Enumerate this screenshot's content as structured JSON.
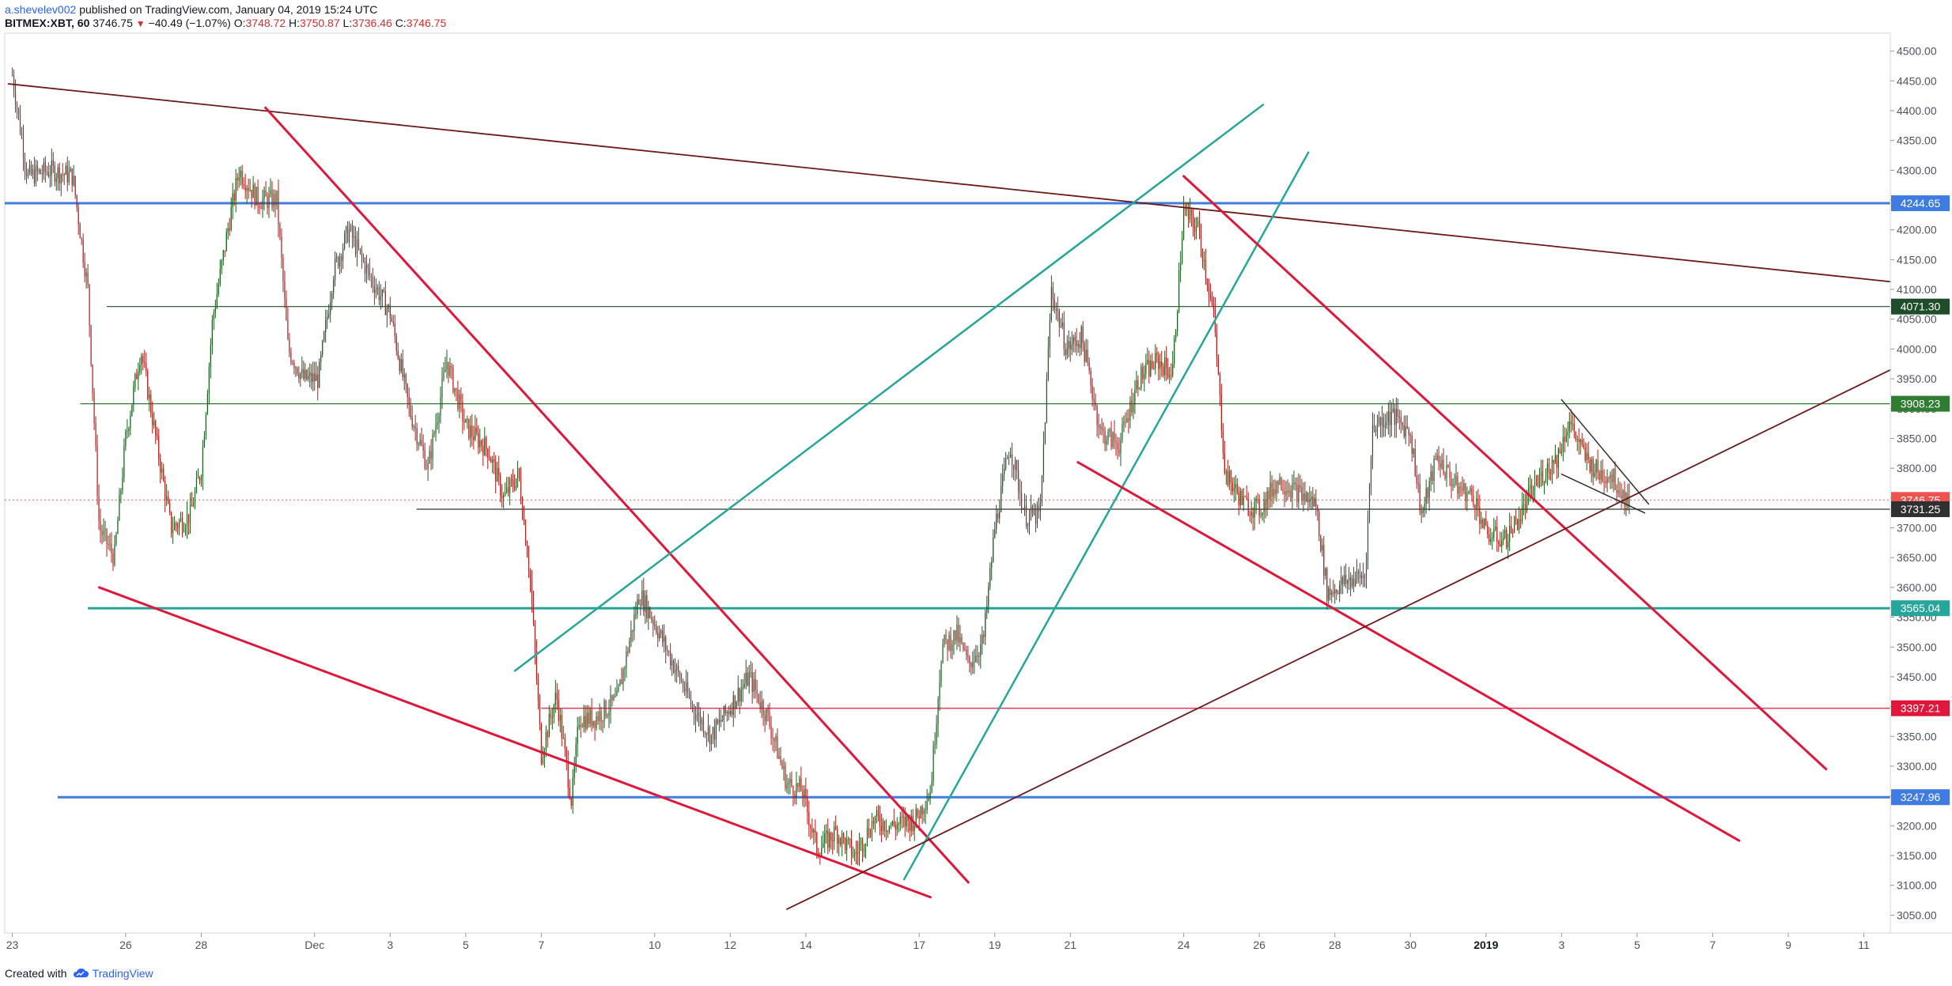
{
  "header": {
    "author": "a.shevelev002",
    "published": "published on TradingView.com, January 04, 2019 15:24 UTC",
    "symbol": "BITMEX:XBT, 60",
    "last": "3746.75",
    "change_arrow": "▼",
    "change": "−40.49 (−1.07%)",
    "o_label": "O:",
    "o_value": "3748.72",
    "h_label": "H:",
    "h_value": "3750.87",
    "l_label": "L:",
    "l_value": "3736.46",
    "c_label": "C:",
    "c_value": "3746.75"
  },
  "footer": {
    "created_with": "Created with",
    "brand": "TradingView"
  },
  "colors": {
    "up": "#1b5e20",
    "down": "#b71c1c",
    "trend_red": "#e0173b",
    "trend_teal": "#26a69a",
    "trend_maroon": "#6d1a1a",
    "level_blue": "#3f7be0",
    "level_green": "#1f6b30"
  },
  "chart_data": {
    "type": "candlestick",
    "symbol": "BITMEX:XBT",
    "interval": "60",
    "xlabel": "",
    "ylabel": "",
    "y_range": [
      3020,
      4530
    ],
    "y_ticks": [
      3050,
      3100,
      3150,
      3200,
      3250,
      3300,
      3350,
      3400,
      3450,
      3500,
      3550,
      3600,
      3650,
      3700,
      3750,
      3800,
      3850,
      3900,
      3950,
      4000,
      4050,
      4100,
      4150,
      4200,
      4250,
      4300,
      4350,
      4400,
      4450,
      4500
    ],
    "y_tick_labels": [
      "3050.00",
      "3100.00",
      "3150.00",
      "3200.00",
      "3250.00",
      "3300.00",
      "3350.00",
      "3400.00",
      "3450.00",
      "3500.00",
      "3550.00",
      "3600.00",
      "3650.00",
      "3700.00",
      "3750.00",
      "3800.00",
      "3850.00",
      "3900.00",
      "3950.00",
      "4000.00",
      "4050.00",
      "4100.00",
      "4150.00",
      "4200.00",
      "4250.00",
      "4300.00",
      "4350.00",
      "4400.00",
      "4450.00",
      "4500.00"
    ],
    "x_range_days": [
      -0.2,
      49.7
    ],
    "x_ticks": [
      {
        "day": 0,
        "label": "23"
      },
      {
        "day": 3,
        "label": "26"
      },
      {
        "day": 5,
        "label": "28"
      },
      {
        "day": 8,
        "label": "Dec"
      },
      {
        "day": 10,
        "label": "3"
      },
      {
        "day": 12,
        "label": "5"
      },
      {
        "day": 14,
        "label": "7"
      },
      {
        "day": 17,
        "label": "10"
      },
      {
        "day": 19,
        "label": "12"
      },
      {
        "day": 21,
        "label": "14"
      },
      {
        "day": 24,
        "label": "17"
      },
      {
        "day": 26,
        "label": "19"
      },
      {
        "day": 28,
        "label": "21"
      },
      {
        "day": 31,
        "label": "24"
      },
      {
        "day": 33,
        "label": "26"
      },
      {
        "day": 35,
        "label": "28"
      },
      {
        "day": 37,
        "label": "30"
      },
      {
        "day": 39,
        "label": "2019",
        "bold": true
      },
      {
        "day": 41,
        "label": "3"
      },
      {
        "day": 43,
        "label": "5"
      },
      {
        "day": 45,
        "label": "7"
      },
      {
        "day": 47,
        "label": "9"
      },
      {
        "day": 49,
        "label": "11"
      }
    ],
    "close_path": [
      [
        0,
        4460
      ],
      [
        0.4,
        4290
      ],
      [
        1.0,
        4300
      ],
      [
        1.6,
        4290
      ],
      [
        2.0,
        4100
      ],
      [
        2.3,
        3700
      ],
      [
        2.7,
        3650
      ],
      [
        3.0,
        3850
      ],
      [
        3.4,
        4000
      ],
      [
        3.8,
        3850
      ],
      [
        4.2,
        3700
      ],
      [
        4.7,
        3720
      ],
      [
        5.0,
        3800
      ],
      [
        5.3,
        4050
      ],
      [
        5.7,
        4200
      ],
      [
        6.0,
        4300
      ],
      [
        6.5,
        4250
      ],
      [
        7.0,
        4250
      ],
      [
        7.3,
        4000
      ],
      [
        7.7,
        3950
      ],
      [
        8.1,
        3950
      ],
      [
        8.5,
        4130
      ],
      [
        8.9,
        4200
      ],
      [
        9.4,
        4130
      ],
      [
        10.0,
        4060
      ],
      [
        10.5,
        3900
      ],
      [
        11.0,
        3800
      ],
      [
        11.5,
        3980
      ],
      [
        12.0,
        3870
      ],
      [
        12.6,
        3830
      ],
      [
        13.0,
        3750
      ],
      [
        13.4,
        3790
      ],
      [
        13.7,
        3620
      ],
      [
        14.0,
        3320
      ],
      [
        14.4,
        3420
      ],
      [
        14.8,
        3240
      ],
      [
        15.0,
        3380
      ],
      [
        15.4,
        3380
      ],
      [
        16.0,
        3410
      ],
      [
        16.6,
        3590
      ],
      [
        17.0,
        3540
      ],
      [
        17.5,
        3470
      ],
      [
        18.0,
        3400
      ],
      [
        18.5,
        3350
      ],
      [
        19.0,
        3400
      ],
      [
        19.5,
        3450
      ],
      [
        20.0,
        3380
      ],
      [
        20.5,
        3270
      ],
      [
        20.9,
        3260
      ],
      [
        21.3,
        3160
      ],
      [
        21.8,
        3190
      ],
      [
        22.3,
        3150
      ],
      [
        22.8,
        3210
      ],
      [
        23.3,
        3200
      ],
      [
        23.9,
        3210
      ],
      [
        24.3,
        3260
      ],
      [
        24.6,
        3500
      ],
      [
        25.0,
        3520
      ],
      [
        25.3,
        3470
      ],
      [
        25.7,
        3510
      ],
      [
        26.0,
        3700
      ],
      [
        26.4,
        3840
      ],
      [
        26.8,
        3720
      ],
      [
        27.2,
        3720
      ],
      [
        27.5,
        4100
      ],
      [
        27.9,
        4000
      ],
      [
        28.3,
        4020
      ],
      [
        28.8,
        3860
      ],
      [
        29.3,
        3840
      ],
      [
        29.8,
        3950
      ],
      [
        30.3,
        3980
      ],
      [
        30.7,
        3960
      ],
      [
        31.0,
        4230
      ],
      [
        31.4,
        4200
      ],
      [
        31.8,
        4050
      ],
      [
        32.1,
        3790
      ],
      [
        32.6,
        3740
      ],
      [
        33.0,
        3730
      ],
      [
        33.5,
        3780
      ],
      [
        34.0,
        3760
      ],
      [
        34.5,
        3740
      ],
      [
        34.8,
        3590
      ],
      [
        35.3,
        3610
      ],
      [
        35.8,
        3620
      ],
      [
        36.0,
        3870
      ],
      [
        36.5,
        3890
      ],
      [
        37.0,
        3860
      ],
      [
        37.3,
        3720
      ],
      [
        37.7,
        3820
      ],
      [
        38.2,
        3770
      ],
      [
        38.7,
        3750
      ],
      [
        39.0,
        3690
      ],
      [
        39.5,
        3680
      ],
      [
        39.9,
        3720
      ],
      [
        40.2,
        3760
      ],
      [
        40.5,
        3790
      ],
      [
        40.9,
        3820
      ],
      [
        41.2,
        3880
      ],
      [
        41.6,
        3820
      ],
      [
        42.0,
        3790
      ],
      [
        42.3,
        3790
      ],
      [
        42.6,
        3760
      ],
      [
        42.8,
        3740
      ]
    ],
    "horizontal_levels": [
      {
        "price": 4244.65,
        "label": "4244.65",
        "color": "#3f7be0",
        "width": 3,
        "x_from_day": -0.2
      },
      {
        "price": 4071.3,
        "label": "4071.30",
        "color": "#1f4d2a",
        "width": 1.2,
        "x_from_day": 2.5
      },
      {
        "price": 3908.23,
        "label": "3908.23",
        "color": "#2e7d32",
        "width": 1.2,
        "x_from_day": 1.8
      },
      {
        "price": 3731.25,
        "label": "3731.25",
        "color": "#303030",
        "width": 1.2,
        "x_from_day": 10.7
      },
      {
        "price": 3565.04,
        "label": "3565.04",
        "color": "#26a69a",
        "width": 3,
        "x_from_day": 2.0
      },
      {
        "price": 3397.21,
        "label": "3397.21",
        "color": "#e0173b",
        "width": 1.2,
        "x_from_day": 14.0
      },
      {
        "price": 3247.96,
        "label": "3247.96",
        "color": "#3f7be0",
        "width": 3,
        "x_from_day": 1.2
      }
    ],
    "last_price": {
      "price": 3746.75,
      "label": "3746.75"
    },
    "trendlines": [
      {
        "color": "#6d1a1a",
        "width": 1.8,
        "from": [
          -0.1,
          4445
        ],
        "to": [
          49.7,
          4113
        ]
      },
      {
        "color": "#e0173b",
        "width": 3,
        "from": [
          6.7,
          4405
        ],
        "to": [
          25.3,
          3105
        ]
      },
      {
        "color": "#e0173b",
        "width": 3,
        "from": [
          2.3,
          3600
        ],
        "to": [
          24.3,
          3080
        ]
      },
      {
        "color": "#26a69a",
        "width": 2.5,
        "from": [
          13.3,
          3460
        ],
        "to": [
          33.1,
          4410
        ]
      },
      {
        "color": "#26a69a",
        "width": 2.5,
        "from": [
          23.6,
          3110
        ],
        "to": [
          34.3,
          4330
        ]
      },
      {
        "color": "#e0173b",
        "width": 3,
        "from": [
          31.0,
          4290
        ],
        "to": [
          48.0,
          3295
        ]
      },
      {
        "color": "#e0173b",
        "width": 3,
        "from": [
          28.2,
          3810
        ],
        "to": [
          45.7,
          3175
        ]
      },
      {
        "color": "#6d1a1a",
        "width": 1.8,
        "from": [
          20.5,
          3060
        ],
        "to": [
          49.7,
          3965
        ]
      },
      {
        "color": "#303030",
        "width": 1.5,
        "from": [
          41.0,
          3915
        ],
        "to": [
          43.3,
          3740
        ]
      },
      {
        "color": "#303030",
        "width": 1.5,
        "from": [
          41.0,
          3790
        ],
        "to": [
          43.2,
          3725
        ]
      }
    ]
  }
}
